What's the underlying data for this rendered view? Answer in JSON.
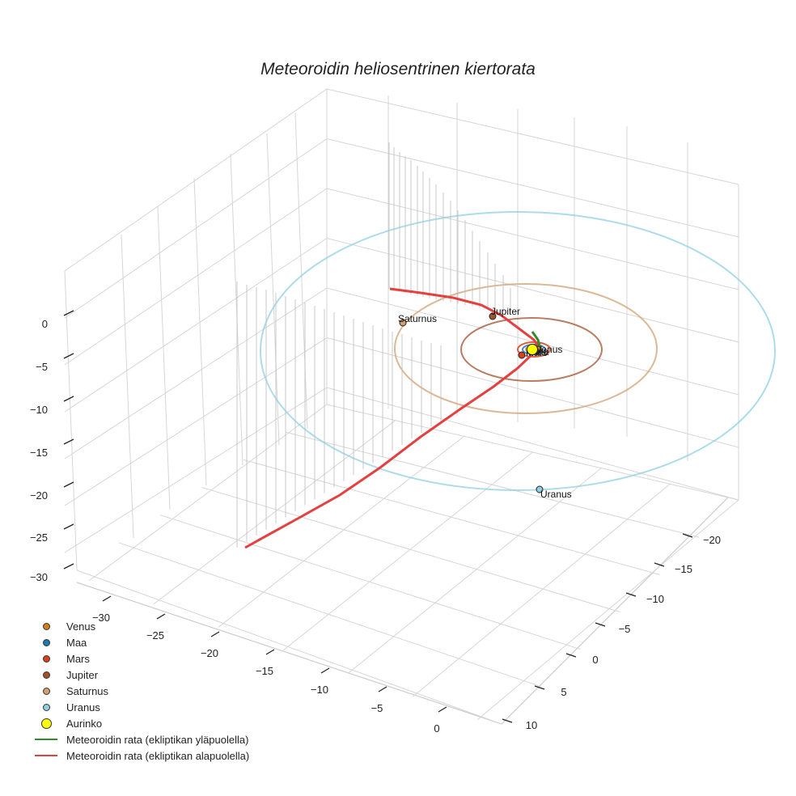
{
  "chart_data": {
    "type": "scatter3d",
    "title": "Meteoroidin heliosentrinen kiertorata",
    "axes": {
      "x": {
        "ticks": [
          -30,
          -25,
          -20,
          -15,
          -10,
          -5,
          0
        ]
      },
      "y": {
        "ticks": [
          -20,
          -15,
          -10,
          -5,
          0,
          5,
          10
        ]
      },
      "z": {
        "ticks": [
          0,
          -5,
          -10,
          -15,
          -20,
          -25,
          -30
        ]
      }
    },
    "grid": true,
    "legend_position": "bottom-left",
    "planets": [
      {
        "name": "Venus",
        "color": "#d07f1a",
        "label_on_plot": "Venus"
      },
      {
        "name": "Maa",
        "color": "#1f77b4",
        "label_on_plot": "Maa"
      },
      {
        "name": "Mars",
        "color": "#d9411e",
        "label_on_plot": "Mars"
      },
      {
        "name": "Jupiter",
        "color": "#a0522d",
        "label_on_plot": "Jupiter"
      },
      {
        "name": "Saturnus",
        "color": "#d2a070",
        "label_on_plot": "Saturnus"
      },
      {
        "name": "Uranus",
        "color": "#8fd0e0",
        "label_on_plot": "Uranus"
      }
    ],
    "sun": {
      "name": "Aurinko",
      "color": "#ffff00"
    },
    "trajectory": [
      {
        "name": "Meteoroidin rata (ekliptikan yläpuolella)",
        "color": "#2e8b2e"
      },
      {
        "name": "Meteoroidin rata (ekliptikan alapuolella)",
        "color": "#e34040"
      }
    ]
  }
}
